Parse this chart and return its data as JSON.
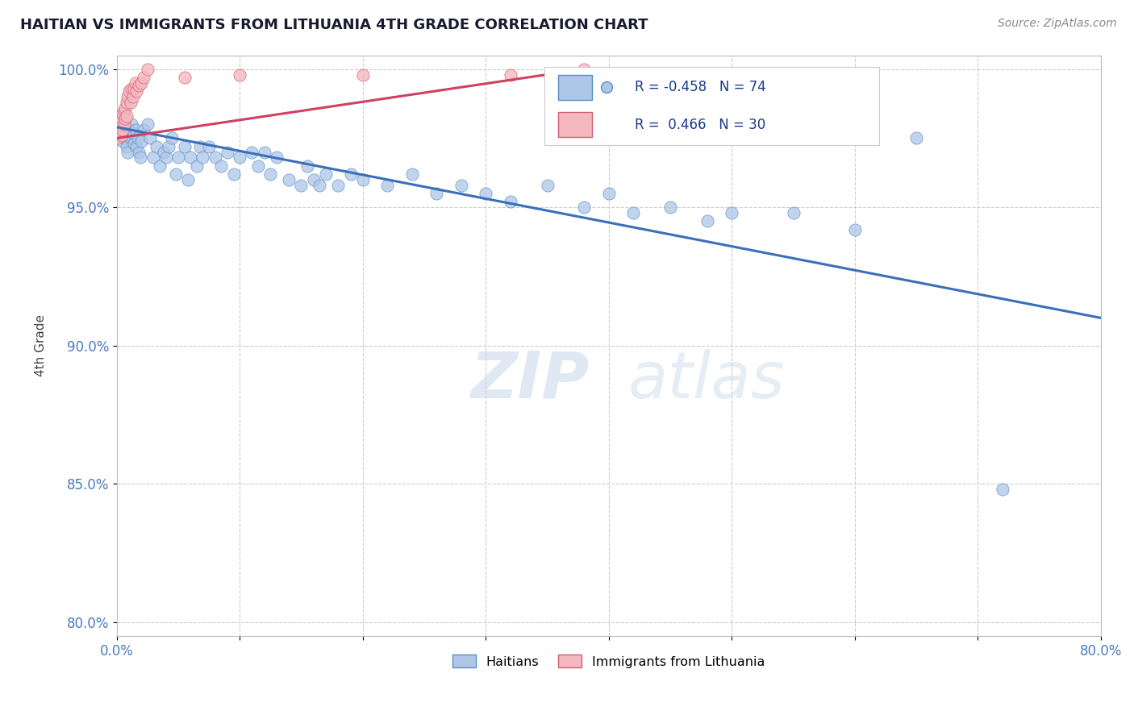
{
  "title": "HAITIAN VS IMMIGRANTS FROM LITHUANIA 4TH GRADE CORRELATION CHART",
  "source_text": "Source: ZipAtlas.com",
  "ylabel": "4th Grade",
  "xlim": [
    0.0,
    0.8
  ],
  "ylim": [
    0.795,
    1.005
  ],
  "xticks": [
    0.0,
    0.1,
    0.2,
    0.3,
    0.4,
    0.5,
    0.6,
    0.7,
    0.8
  ],
  "xticklabels": [
    "0.0%",
    "",
    "",
    "",
    "",
    "",
    "",
    "",
    "80.0%"
  ],
  "yticks": [
    0.8,
    0.85,
    0.9,
    0.95,
    1.0
  ],
  "yticklabels": [
    "80.0%",
    "85.0%",
    "90.0%",
    "95.0%",
    "100.0%"
  ],
  "blue_R": -0.458,
  "blue_N": 74,
  "pink_R": 0.466,
  "pink_N": 30,
  "blue_color": "#aec6e8",
  "pink_color": "#f4b8c0",
  "blue_edge_color": "#5b8ec4",
  "pink_edge_color": "#d46070",
  "blue_line_color": "#3a6fba",
  "pink_line_color": "#d04060",
  "watermark_zip": "ZIP",
  "watermark_atlas": "atlas",
  "legend_label_blue": "Haitians",
  "legend_label_pink": "Immigrants from Lithuania",
  "blue_scatter_x": [
    0.002,
    0.003,
    0.004,
    0.005,
    0.006,
    0.007,
    0.008,
    0.009,
    0.01,
    0.011,
    0.012,
    0.013,
    0.014,
    0.015,
    0.016,
    0.017,
    0.018,
    0.019,
    0.02,
    0.022,
    0.025,
    0.027,
    0.03,
    0.032,
    0.035,
    0.038,
    0.04,
    0.042,
    0.045,
    0.048,
    0.05,
    0.055,
    0.058,
    0.06,
    0.065,
    0.068,
    0.07,
    0.075,
    0.08,
    0.085,
    0.09,
    0.095,
    0.1,
    0.11,
    0.115,
    0.12,
    0.125,
    0.13,
    0.14,
    0.15,
    0.155,
    0.16,
    0.165,
    0.17,
    0.18,
    0.19,
    0.2,
    0.22,
    0.24,
    0.26,
    0.28,
    0.3,
    0.32,
    0.35,
    0.38,
    0.4,
    0.42,
    0.45,
    0.48,
    0.5,
    0.55,
    0.6,
    0.65,
    0.72
  ],
  "blue_scatter_y": [
    0.981,
    0.978,
    0.976,
    0.974,
    0.98,
    0.975,
    0.972,
    0.97,
    0.978,
    0.975,
    0.98,
    0.977,
    0.973,
    0.978,
    0.972,
    0.975,
    0.97,
    0.968,
    0.974,
    0.978,
    0.98,
    0.975,
    0.968,
    0.972,
    0.965,
    0.97,
    0.968,
    0.972,
    0.975,
    0.962,
    0.968,
    0.972,
    0.96,
    0.968,
    0.965,
    0.972,
    0.968,
    0.972,
    0.968,
    0.965,
    0.97,
    0.962,
    0.968,
    0.97,
    0.965,
    0.97,
    0.962,
    0.968,
    0.96,
    0.958,
    0.965,
    0.96,
    0.958,
    0.962,
    0.958,
    0.962,
    0.96,
    0.958,
    0.962,
    0.955,
    0.958,
    0.955,
    0.952,
    0.958,
    0.95,
    0.955,
    0.948,
    0.95,
    0.945,
    0.948,
    0.948,
    0.942,
    0.975,
    0.848
  ],
  "pink_scatter_x": [
    0.001,
    0.002,
    0.003,
    0.004,
    0.004,
    0.005,
    0.005,
    0.006,
    0.006,
    0.007,
    0.007,
    0.008,
    0.008,
    0.009,
    0.01,
    0.011,
    0.012,
    0.013,
    0.014,
    0.015,
    0.016,
    0.018,
    0.02,
    0.022,
    0.025,
    0.055,
    0.1,
    0.2,
    0.32,
    0.38
  ],
  "pink_scatter_y": [
    0.975,
    0.978,
    0.98,
    0.982,
    0.976,
    0.984,
    0.978,
    0.985,
    0.98,
    0.986,
    0.982,
    0.988,
    0.983,
    0.99,
    0.992,
    0.988,
    0.993,
    0.99,
    0.993,
    0.995,
    0.992,
    0.994,
    0.995,
    0.997,
    1.0,
    0.997,
    0.998,
    0.998,
    0.998,
    1.0
  ],
  "blue_line_x": [
    0.0,
    0.8
  ],
  "blue_line_y": [
    0.979,
    0.91
  ],
  "pink_line_x": [
    0.0,
    0.38
  ],
  "pink_line_y": [
    0.975,
    1.0
  ]
}
